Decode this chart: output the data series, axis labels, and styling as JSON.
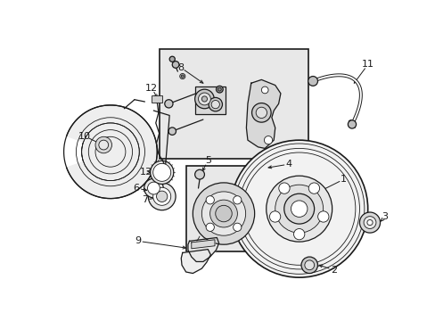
{
  "bg_color": "#ffffff",
  "line_color": "#1a1a1a",
  "fig_width": 4.89,
  "fig_height": 3.6,
  "dpi": 100,
  "gray_fill": "#e8e8e8",
  "light_gray": "#f0f0f0",
  "mid_gray": "#d0d0d0",
  "dark_gray": "#888888"
}
